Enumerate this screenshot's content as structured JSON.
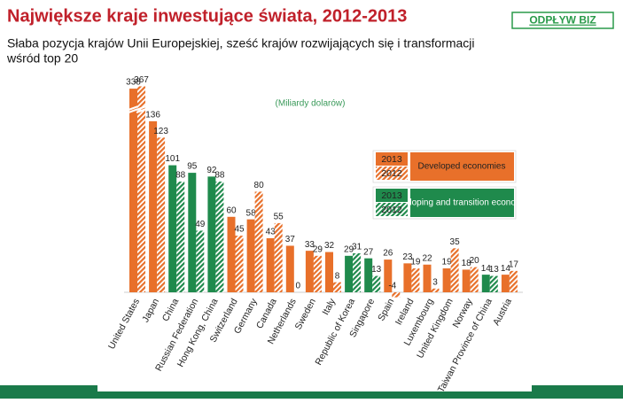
{
  "chart_data": {
    "type": "bar",
    "title": "Największe kraje inwestujące świata, 2012-2013",
    "subtitle_lines": [
      "Słaba pozycja krajów Unii Europejskiej, sześć krajów rozwijających się i transformacji",
      "wśród top 20"
    ],
    "badge": "ODPŁYW BIZ",
    "unit_label": "(Miliardy dolarów)",
    "categories": [
      "United States",
      "Japan",
      "China",
      "Russian Federation",
      "Hong Kong, China",
      "Switzerland",
      "Germany",
      "Canada",
      "Netherlands",
      "Sweden",
      "Italy",
      "Republic of Korea",
      "Singapore",
      "Spain",
      "Ireland",
      "Luxembourg",
      "United Kingdom",
      "Norway",
      "Taiwan Province of China",
      "Austria"
    ],
    "category_groups": [
      "Developed economies",
      "Developed economies",
      "Developing and transition economies",
      "Developing and transition economies",
      "Developing and transition economies",
      "Developed economies",
      "Developed economies",
      "Developed economies",
      "Developed economies",
      "Developed economies",
      "Developed economies",
      "Developing and transition economies",
      "Developing and transition economies",
      "Developed economies",
      "Developed economies",
      "Developed economies",
      "Developed economies",
      "Developed economies",
      "Developing and transition economies",
      "Developed economies"
    ],
    "groups": [
      {
        "name": "Developed economies",
        "color": "#e8702a"
      },
      {
        "name": "Developing and transition economies",
        "color": "#1f8a4c"
      }
    ],
    "series": [
      {
        "name": "2013",
        "pattern": "solid",
        "values": [
          338,
          136,
          101,
          95,
          92,
          60,
          58,
          43,
          37,
          33,
          32,
          29,
          27,
          26,
          23,
          22,
          19,
          18,
          14,
          14
        ]
      },
      {
        "name": "2012",
        "pattern": "hatched",
        "values": [
          367,
          123,
          88,
          49,
          88,
          45,
          80,
          55,
          0,
          29,
          8,
          31,
          13,
          -4,
          19,
          3,
          35,
          20,
          13,
          17
        ]
      }
    ],
    "axis_break": 150
  }
}
